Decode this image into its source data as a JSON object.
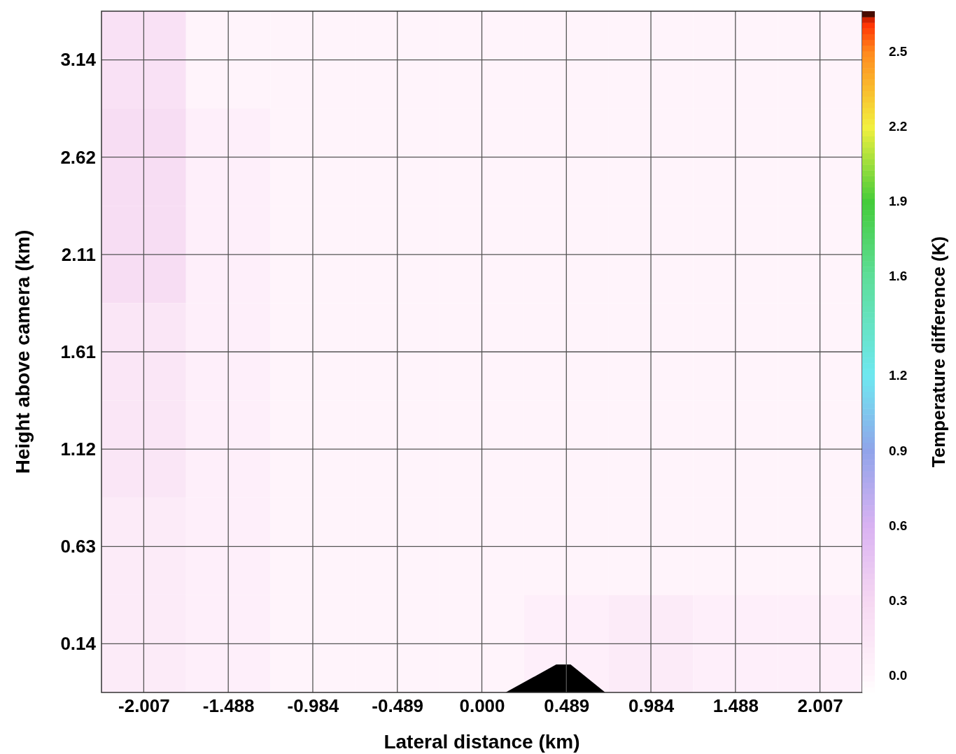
{
  "chart_data": {
    "type": "heatmap",
    "xlabel": "Lateral distance (km)",
    "ylabel": "Height above camera (km)",
    "clabel": "Temperature difference (K)",
    "categories": [
      "-2.007",
      "-1.488",
      "-0.984",
      "-0.489",
      "0.000",
      "0.489",
      "0.984",
      "1.488",
      "2.007"
    ],
    "y_categories": [
      "3.14",
      "2.62",
      "2.11",
      "1.61",
      "1.12",
      "0.63",
      "0.14"
    ],
    "clim": [
      -0.07,
      2.66
    ],
    "cticks": [
      {
        "value": 0,
        "label": "0.0"
      },
      0.3,
      0.6,
      0.9,
      1.2,
      1.6,
      1.9,
      2.2,
      2.5
    ],
    "grid": true,
    "cells": [
      [
        0.2,
        0,
        0,
        0,
        0,
        0,
        0,
        0,
        0
      ],
      [
        0.25,
        0.05,
        0,
        0,
        0,
        0,
        0,
        0,
        0
      ],
      [
        0.25,
        0.05,
        0,
        0,
        0,
        0,
        0,
        0,
        0
      ],
      [
        0.15,
        0.05,
        0,
        0,
        0,
        0,
        0,
        0,
        0
      ],
      [
        0.15,
        0.05,
        0,
        0,
        0,
        0,
        0,
        0,
        0
      ],
      [
        0.1,
        0.05,
        0,
        0,
        0,
        0,
        0,
        0,
        0
      ],
      [
        0.1,
        0.05,
        0,
        0,
        0,
        0.05,
        0.1,
        0.05,
        0.05
      ]
    ]
  }
}
